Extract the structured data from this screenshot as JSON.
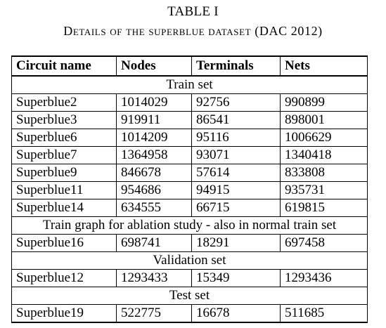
{
  "caption": {
    "label": "TABLE I",
    "title": "Details of the superblue dataset (DAC 2012)"
  },
  "table": {
    "headers": [
      "Circuit name",
      "Nodes",
      "Terminals",
      "Nets"
    ],
    "sections": {
      "train": "Train set",
      "ablation": "Train graph for ablation study - also in normal train set",
      "validation": "Validation set",
      "test": "Test set"
    },
    "rows": [
      {
        "name": "Superblue2",
        "nodes": "1014029",
        "terminals": "92756",
        "nets": "990899"
      },
      {
        "name": "Superblue3",
        "nodes": "919911",
        "terminals": "86541",
        "nets": "898001"
      },
      {
        "name": "Superblue6",
        "nodes": "1014209",
        "terminals": "95116",
        "nets": "1006629"
      },
      {
        "name": "Superblue7",
        "nodes": "1364958",
        "terminals": "93071",
        "nets": "1340418"
      },
      {
        "name": "Superblue9",
        "nodes": "846678",
        "terminals": "57614",
        "nets": "833808"
      },
      {
        "name": "Superblue11",
        "nodes": "954686",
        "terminals": "94915",
        "nets": "935731"
      },
      {
        "name": "Superblue14",
        "nodes": "634555",
        "terminals": "66715",
        "nets": "619815"
      },
      {
        "name": "Superblue16",
        "nodes": "698741",
        "terminals": "18291",
        "nets": "697458"
      },
      {
        "name": "Superblue12",
        "nodes": "1293433",
        "terminals": "15349",
        "nets": "1293436"
      },
      {
        "name": "Superblue19",
        "nodes": "522775",
        "terminals": "16678",
        "nets": "511685"
      }
    ]
  }
}
